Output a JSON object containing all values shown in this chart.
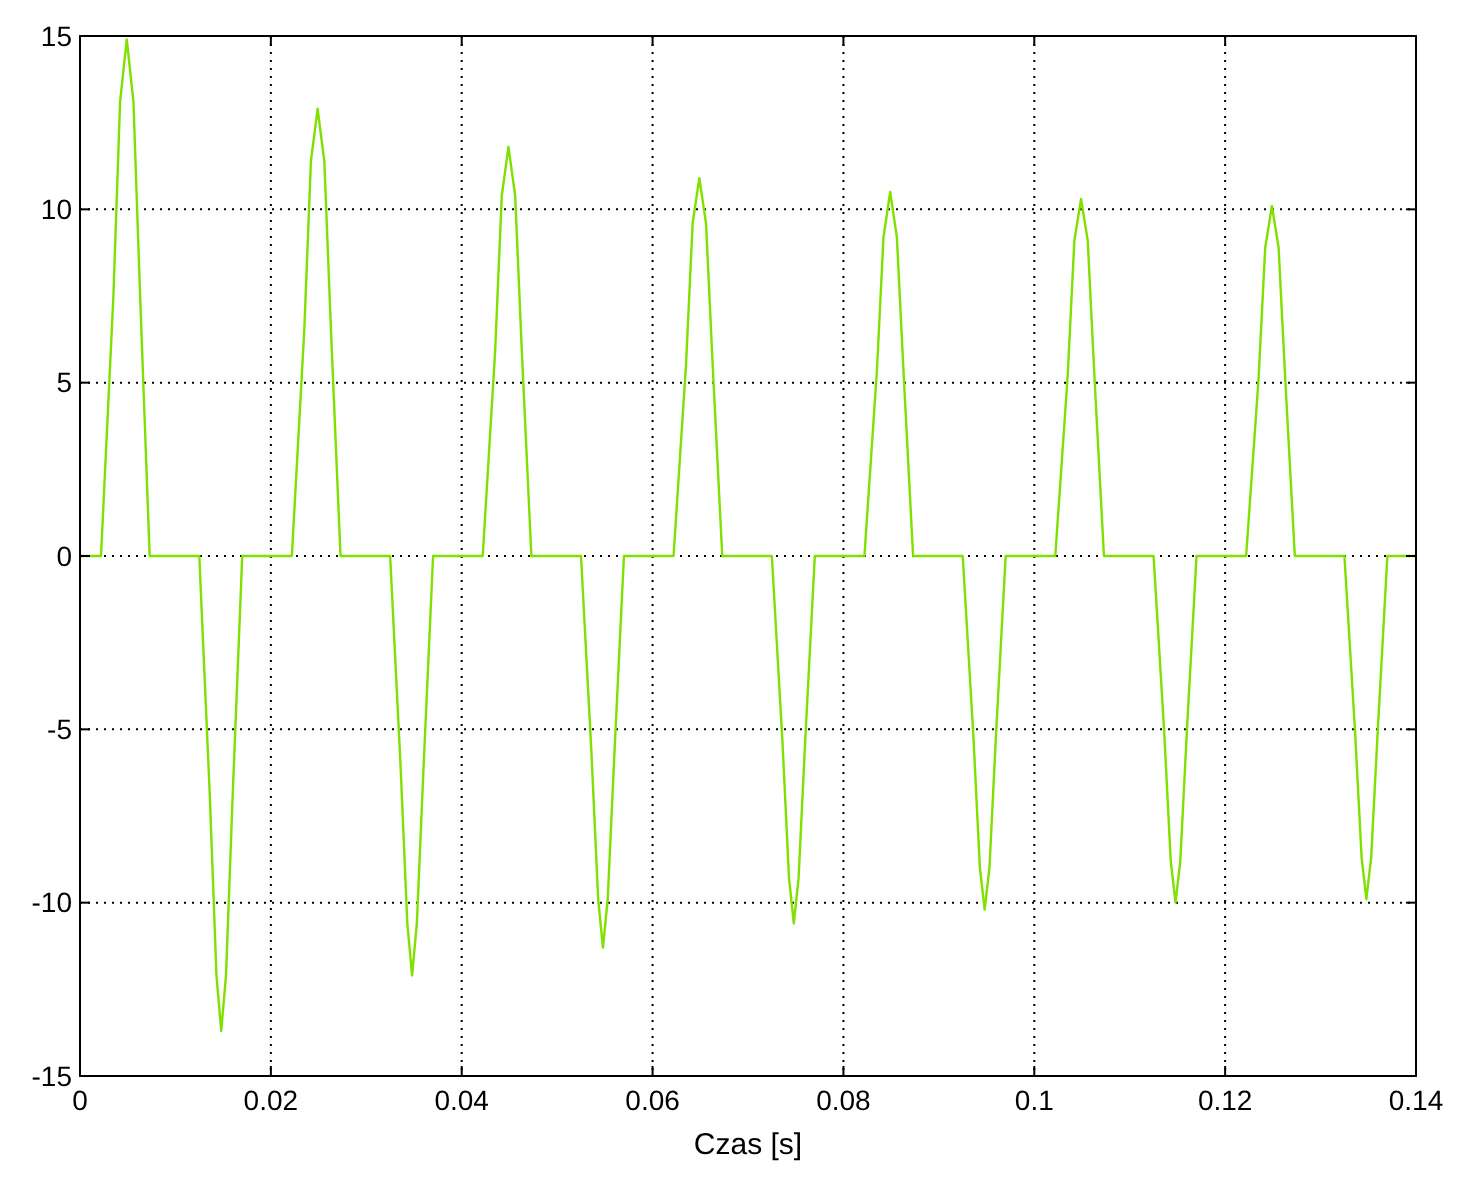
{
  "chart_data": {
    "type": "line",
    "xlabel": "Czas [s]",
    "xlim": [
      0,
      0.14
    ],
    "ylim": [
      -15,
      15
    ],
    "xticks": [
      0,
      0.02,
      0.04,
      0.06,
      0.08,
      0.1,
      0.12,
      0.14
    ],
    "yticks": [
      -15,
      -10,
      -5,
      0,
      5,
      10,
      15
    ],
    "grid": true,
    "line_style": "solid",
    "marker": "none",
    "series": [
      {
        "color": "#80e000",
        "x": [
          0,
          0.0022,
          0.0035,
          0.0042,
          0.0049,
          0.0056,
          0.0063,
          0.0073,
          0.0125,
          0.0136,
          0.0143,
          0.0148,
          0.0153,
          0.016,
          0.017,
          0.0222,
          0.0235,
          0.0242,
          0.0249,
          0.0256,
          0.0263,
          0.0273,
          0.0325,
          0.0336,
          0.0343,
          0.0348,
          0.0353,
          0.036,
          0.037,
          0.0422,
          0.0435,
          0.0442,
          0.0449,
          0.0456,
          0.0463,
          0.0473,
          0.0525,
          0.0536,
          0.0543,
          0.0548,
          0.0553,
          0.056,
          0.057,
          0.0622,
          0.0635,
          0.0642,
          0.0649,
          0.0656,
          0.0663,
          0.0673,
          0.0725,
          0.0736,
          0.0743,
          0.0748,
          0.0753,
          0.076,
          0.077,
          0.0822,
          0.0835,
          0.0842,
          0.0849,
          0.0856,
          0.0863,
          0.0873,
          0.0925,
          0.0936,
          0.0943,
          0.0948,
          0.0953,
          0.096,
          0.097,
          0.1022,
          0.1035,
          0.1042,
          0.1049,
          0.1056,
          0.1063,
          0.1073,
          0.1125,
          0.1136,
          0.1143,
          0.1148,
          0.1153,
          0.116,
          0.117,
          0.1222,
          0.1235,
          0.1242,
          0.1249,
          0.1256,
          0.1263,
          0.1273,
          0.1325,
          0.1336,
          0.1343,
          0.1348,
          0.1353,
          0.136,
          0.137,
          0.14
        ],
        "values": [
          0,
          0,
          7.5,
          13.1,
          14.9,
          13.1,
          7.5,
          0,
          0,
          -6.9,
          -12.1,
          -13.7,
          -12.1,
          -6.9,
          0,
          0,
          6.5,
          11.4,
          12.9,
          11.4,
          6.5,
          0,
          0,
          -6.1,
          -10.6,
          -12.1,
          -10.6,
          -6.1,
          0,
          0,
          5.9,
          10.4,
          11.8,
          10.4,
          5.9,
          0,
          0,
          -5.7,
          -9.9,
          -11.3,
          -9.9,
          -5.7,
          0,
          0,
          5.5,
          9.6,
          10.9,
          9.6,
          5.5,
          0,
          0,
          -5.3,
          -9.3,
          -10.6,
          -9.3,
          -5.3,
          0,
          0,
          5.3,
          9.2,
          10.5,
          9.2,
          5.3,
          0,
          0,
          -5.1,
          -9.0,
          -10.2,
          -9.0,
          -5.1,
          0,
          0,
          5.2,
          9.1,
          10.3,
          9.1,
          5.2,
          0,
          0,
          -5.0,
          -8.8,
          -10.0,
          -8.8,
          -5.0,
          0,
          0,
          5.1,
          8.9,
          10.1,
          8.9,
          5.1,
          0,
          0,
          -5.0,
          -8.7,
          -9.9,
          -8.7,
          -5.0,
          0,
          0
        ]
      }
    ]
  }
}
